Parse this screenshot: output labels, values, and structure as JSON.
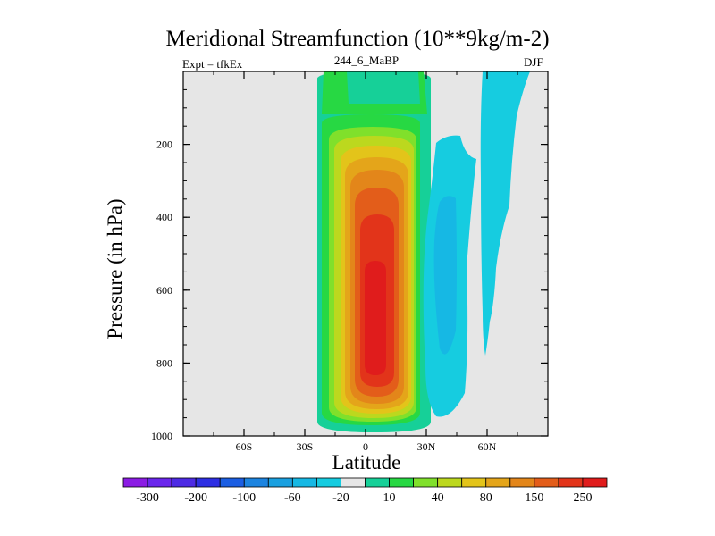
{
  "chart_data": {
    "type": "heatmap",
    "title": "Meridional Streamfunction (10**9kg/m-2)",
    "subtitle_left": "Expt = tfkEx",
    "subtitle_center": "244_6_MaBP",
    "subtitle_right": "DJF",
    "xlabel": "Latitude",
    "ylabel": "Pressure (in hPa)",
    "x_ticks": [
      {
        "value": -60,
        "label": "60S"
      },
      {
        "value": -30,
        "label": "30S"
      },
      {
        "value": 0,
        "label": "0"
      },
      {
        "value": 30,
        "label": "30N"
      },
      {
        "value": 60,
        "label": "60N"
      }
    ],
    "xlim": [
      -90,
      90
    ],
    "y_ticks": [
      200,
      400,
      600,
      800,
      1000
    ],
    "ylim": [
      1000,
      0
    ],
    "background_color": "#e6e6e6",
    "colorbar": {
      "labels": [
        "-300",
        "-200",
        "-100",
        "-60",
        "-20",
        "10",
        "40",
        "80",
        "150",
        "250"
      ],
      "colors": [
        "#8b1ce4",
        "#6a26ec",
        "#4d2ae4",
        "#2d2ee3",
        "#1b5ee2",
        "#1c84e0",
        "#1aa0e0",
        "#16b8e4",
        "#16cce0",
        "#e6e6e6",
        "#16d098",
        "#27d843",
        "#80e02b",
        "#bcd81e",
        "#e3c41a",
        "#e4a51a",
        "#e3861a",
        "#e35d1a",
        "#e2341a",
        "#e01c1c"
      ]
    },
    "cells": [
      {
        "name": "positive-cell",
        "sign": "positive",
        "latitude_range": [
          -22,
          30
        ],
        "pressure_range": [
          0,
          980
        ],
        "peak_value": 250,
        "peak_latitude": 7,
        "peak_pressure": 780
      },
      {
        "name": "negative-cell-mid",
        "sign": "negative",
        "latitude_range": [
          32,
          55
        ],
        "pressure_range": [
          170,
          960
        ],
        "min_value": -20
      },
      {
        "name": "negative-cell-high",
        "sign": "negative",
        "latitude_range": [
          55,
          80
        ],
        "pressure_range": [
          0,
          790
        ],
        "min_value": -20
      }
    ]
  }
}
